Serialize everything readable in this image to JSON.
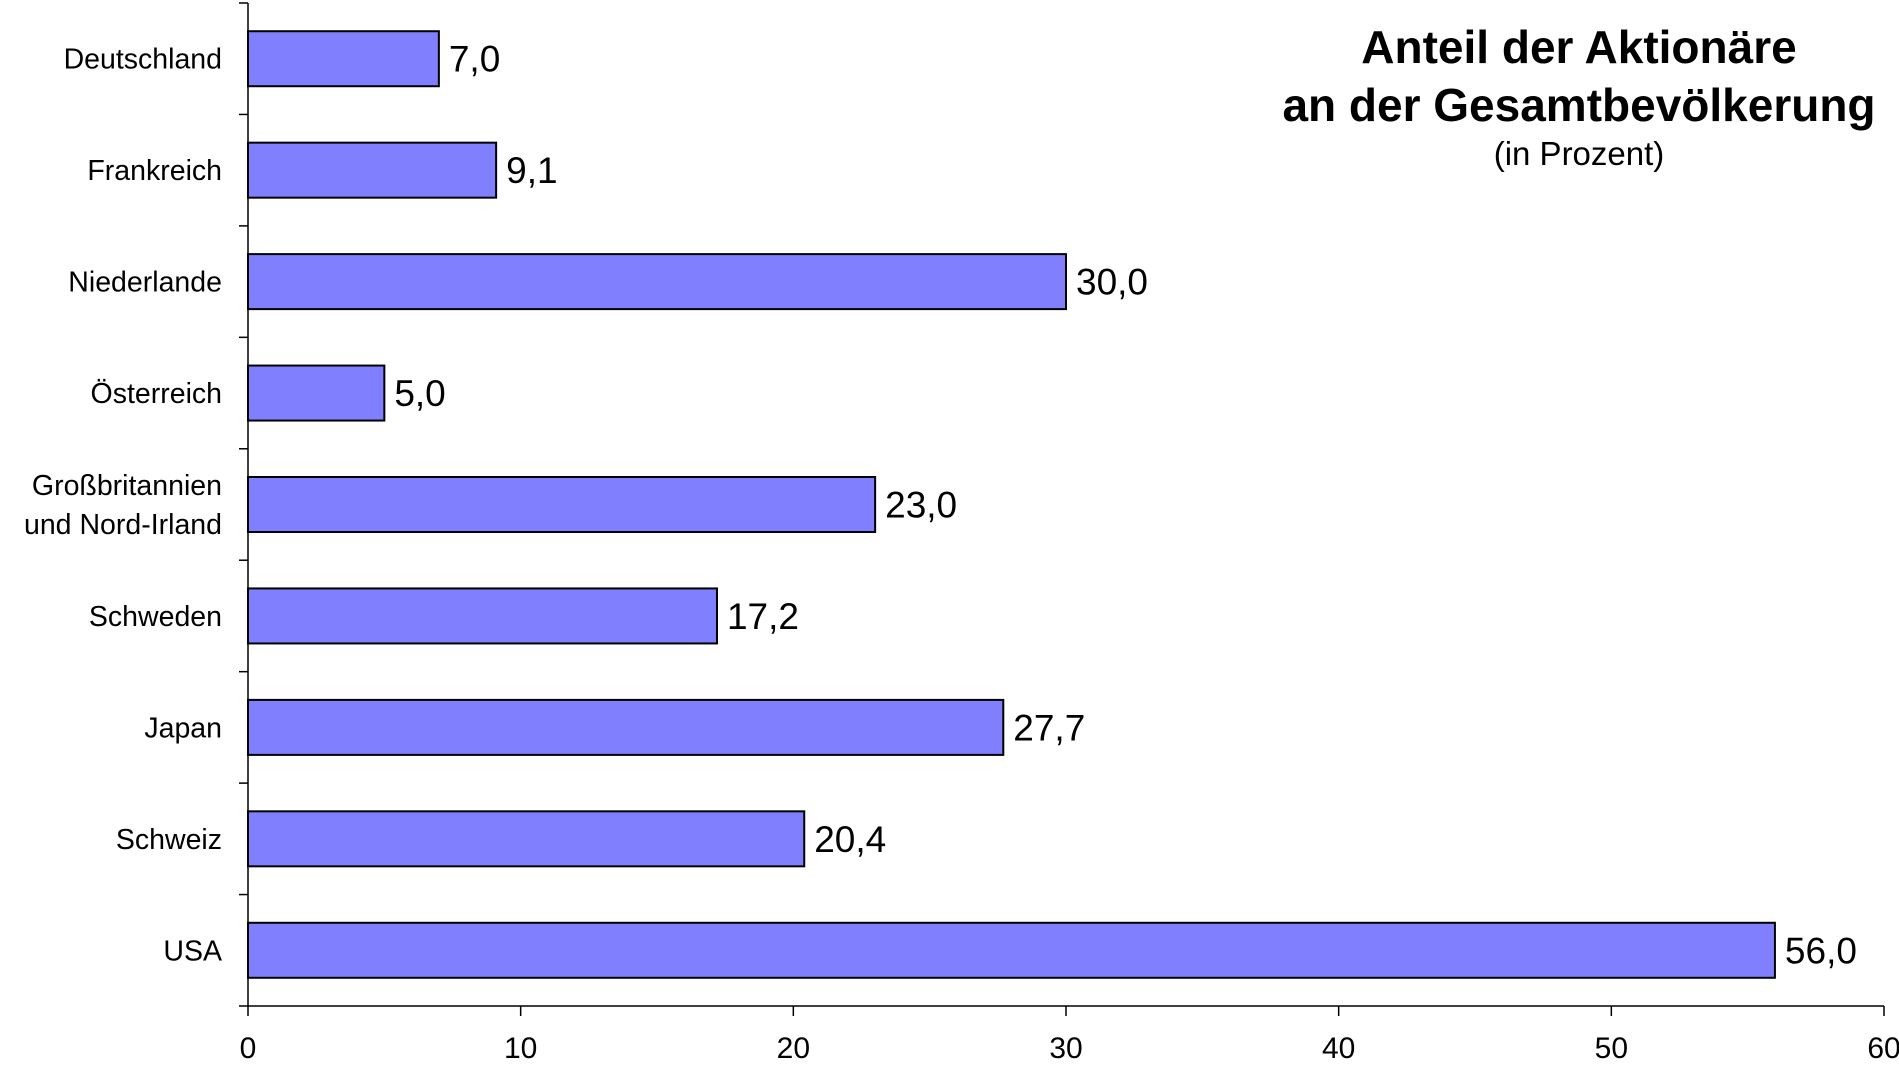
{
  "chart_data": {
    "type": "bar",
    "orientation": "horizontal",
    "title_lines": [
      "Anteil der Aktionäre",
      "an der Gesamtbevölkerung"
    ],
    "subtitle": "(in Prozent)",
    "categories": [
      [
        "Deutschland"
      ],
      [
        "Frankreich"
      ],
      [
        "Niederlande"
      ],
      [
        "Österreich"
      ],
      [
        "Großbritannien",
        "und Nord-Irland"
      ],
      [
        "Schweden"
      ],
      [
        "Japan"
      ],
      [
        "Schweiz"
      ],
      [
        "USA"
      ]
    ],
    "values": [
      7.0,
      9.1,
      30.0,
      5.0,
      23.0,
      17.2,
      27.7,
      20.4,
      56.0
    ],
    "value_labels": [
      "7,0",
      "9,1",
      "30,0",
      "5,0",
      "23,0",
      "17,2",
      "27,7",
      "20,4",
      "56,0"
    ],
    "xlim": [
      0,
      60
    ],
    "xticks": [
      0,
      10,
      20,
      30,
      40,
      50,
      60
    ],
    "xtick_labels": [
      "0",
      "10",
      "20",
      "30",
      "40",
      "50",
      "60"
    ],
    "xlabel": "",
    "ylabel": "",
    "grid": false,
    "legend": "none",
    "colors": {
      "bar_fill": "#8080FF",
      "bar_stroke": "#000000",
      "axis": "#000000",
      "text": "#000000"
    }
  }
}
